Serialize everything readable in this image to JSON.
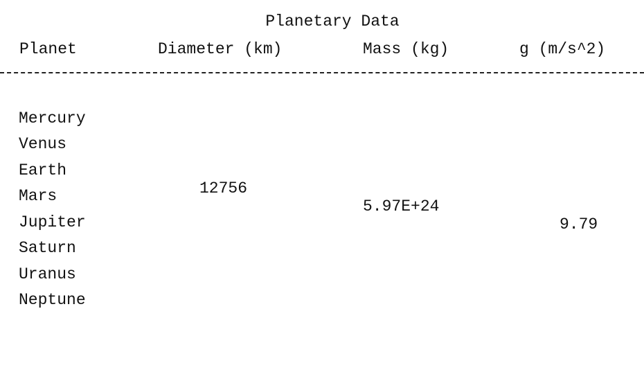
{
  "title": "Planetary Data",
  "columns": {
    "planet": "Planet",
    "diameter": "Diameter (km)",
    "mass": "Mass (kg)",
    "g": "g (m/s^2)"
  },
  "rows": [
    {
      "planet": "Mercury",
      "diameter": "",
      "mass": "",
      "g": ""
    },
    {
      "planet": "Venus",
      "diameter": "",
      "mass": "",
      "g": ""
    },
    {
      "planet": "Earth",
      "diameter": "12756",
      "mass": "5.97E+24",
      "g": "9.79"
    },
    {
      "planet": "Mars",
      "diameter": "",
      "mass": "",
      "g": ""
    },
    {
      "planet": "Jupiter",
      "diameter": "",
      "mass": "",
      "g": ""
    },
    {
      "planet": "Saturn",
      "diameter": "",
      "mass": "",
      "g": ""
    },
    {
      "planet": "Uranus",
      "diameter": "",
      "mass": "",
      "g": ""
    },
    {
      "planet": "Neptune",
      "diameter": "",
      "mass": "",
      "g": ""
    }
  ]
}
